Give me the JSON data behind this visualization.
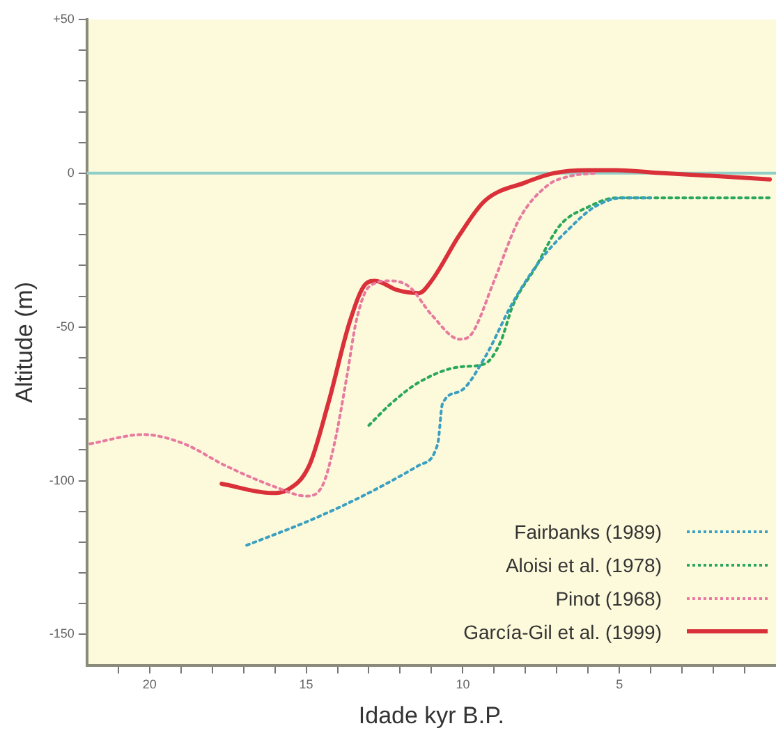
{
  "chart_data": {
    "type": "line",
    "xlabel": "Idade kyr B.P.",
    "ylabel": "Altitude (m)",
    "xlim": [
      22,
      0
    ],
    "ylim": [
      -160,
      50
    ],
    "xticks": [
      {
        "value": 21,
        "label": null
      },
      20,
      {
        "value": 19,
        "label": null
      },
      {
        "value": 18,
        "label": null
      },
      {
        "value": 17,
        "label": null
      },
      {
        "value": 16,
        "label": null
      },
      15,
      {
        "value": 14,
        "label": null
      },
      {
        "value": 13,
        "label": null
      },
      {
        "value": 12,
        "label": null
      },
      {
        "value": 11,
        "label": null
      },
      10,
      {
        "value": 9,
        "label": null
      },
      {
        "value": 8,
        "label": null
      },
      {
        "value": 7,
        "label": null
      },
      {
        "value": 6,
        "label": null
      },
      5,
      {
        "value": 4,
        "label": null
      },
      {
        "value": 3,
        "label": null
      },
      {
        "value": 2,
        "label": null
      },
      {
        "value": 1,
        "label": null
      }
    ],
    "yticks": [
      -150,
      {
        "value": -140,
        "label": null
      },
      {
        "value": -130,
        "label": null
      },
      {
        "value": -120,
        "label": null
      },
      {
        "value": -110,
        "label": null
      },
      -100,
      {
        "value": -90,
        "label": null
      },
      {
        "value": -80,
        "label": null
      },
      {
        "value": -70,
        "label": null
      },
      {
        "value": -60,
        "label": null
      },
      -50,
      {
        "value": -40,
        "label": null
      },
      {
        "value": -30,
        "label": null
      },
      {
        "value": -20,
        "label": null
      },
      {
        "value": -10,
        "label": null
      },
      0,
      {
        "value": 10,
        "label": null
      },
      {
        "value": 20,
        "label": null
      },
      {
        "value": 30,
        "label": null
      },
      {
        "value": 40,
        "label": null
      },
      {
        "value": 50,
        "label": "+50"
      }
    ],
    "grid": false,
    "legend": "bottom right",
    "marker": "none",
    "ref_lines": [
      {
        "axis": "y",
        "value": 0,
        "color": "#8fcfc8"
      }
    ],
    "series": [
      {
        "name": "Fairbanks (1989)",
        "color": "#3a9fc0",
        "line_style": "dotted",
        "x": [
          16.9,
          14.9,
          13.2,
          11.4,
          10.8,
          10.65,
          10.1,
          9.3,
          8.4,
          7.5,
          6.6,
          5.8,
          4.9,
          4.0
        ],
        "values": [
          -121,
          -113,
          -105,
          -95,
          -88,
          -75,
          -71,
          -60,
          -42,
          -28,
          -18,
          -11,
          -8,
          -8
        ]
      },
      {
        "name": "Aloisi et al. (1978)",
        "color": "#2aa85a",
        "line_style": "dotted",
        "x": [
          13.0,
          12.3,
          11.4,
          10.1,
          9.3,
          8.8,
          8.4,
          7.7,
          6.9,
          6.0,
          5.1,
          3.6,
          0.2
        ],
        "values": [
          -82,
          -75,
          -68,
          -63,
          -62,
          -55,
          -43,
          -31,
          -17,
          -11,
          -8,
          -8,
          -8
        ]
      },
      {
        "name": "Pinot (1968)",
        "color": "#e87aa0",
        "line_style": "dotted",
        "x": [
          21.9,
          20.2,
          18.9,
          17.6,
          16.0,
          15.0,
          14.5,
          14.1,
          13.7,
          13.4,
          13.0,
          12.3,
          11.7,
          11.0,
          10.1,
          9.7,
          9.0,
          8.2,
          7.3,
          6.6,
          5.8
        ],
        "values": [
          -88,
          -85,
          -88,
          -95,
          -102,
          -105,
          -102,
          -88,
          -66,
          -48,
          -37,
          -35,
          -37,
          -46,
          -54,
          -52,
          -35,
          -15,
          -4,
          -1,
          0
        ]
      },
      {
        "name": "García-Gil et al. (1999)",
        "color": "#d9303a",
        "line_style": "solid",
        "x": [
          17.7,
          16.1,
          15.6,
          14.9,
          14.3,
          13.6,
          13.1,
          12.8,
          12.1,
          11.4,
          11.0,
          10.1,
          9.3,
          8.0,
          7.1,
          6.0,
          5.1,
          3.6,
          1.8,
          0.2
        ],
        "values": [
          -101,
          -104,
          -103,
          -95,
          -75,
          -48,
          -36,
          -35,
          -38,
          -39,
          -35,
          -20,
          -9,
          -3,
          0,
          1,
          1,
          0,
          -1,
          -2
        ]
      }
    ]
  }
}
